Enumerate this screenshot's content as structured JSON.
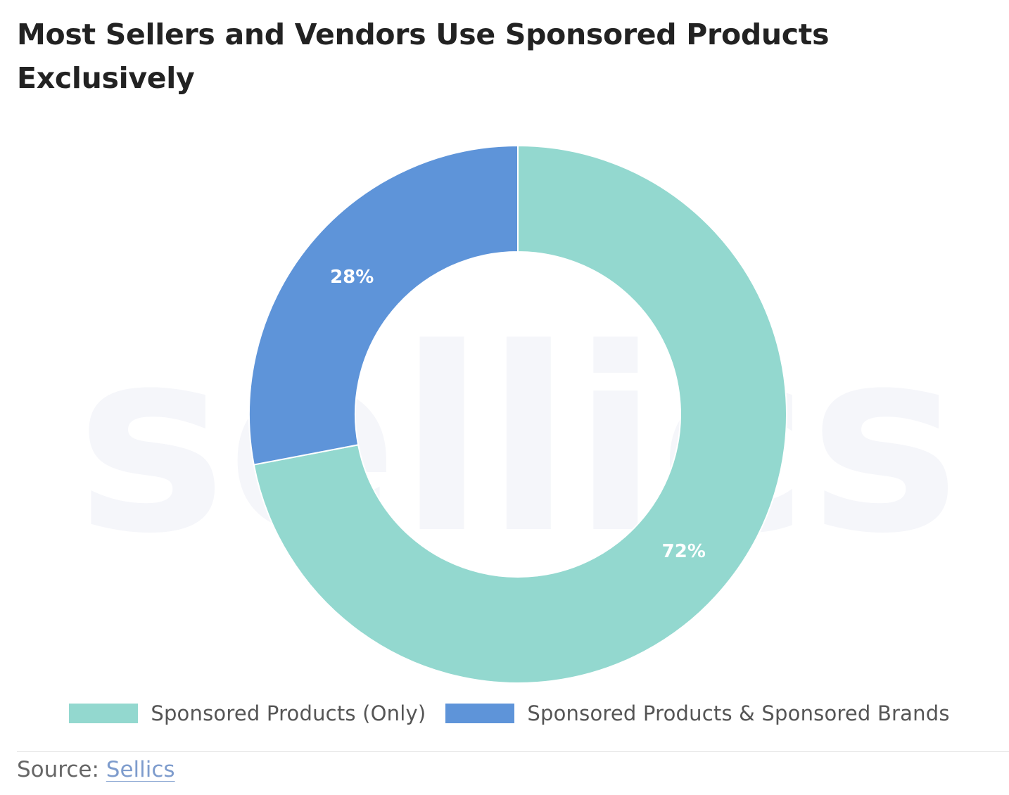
{
  "chart_data": {
    "type": "pie",
    "variant": "donut",
    "title": "Most Sellers and Vendors Use Sponsored Products Exclusively",
    "categories": [
      "Sponsored Products (Only)",
      "Sponsored Products & Sponsored Brands"
    ],
    "values": [
      72,
      28
    ],
    "unit": "%",
    "data_labels": [
      "72%",
      "28%"
    ],
    "colors": [
      "#93d8cf",
      "#5e94d9"
    ],
    "legend_position": "bottom-center",
    "watermark": "sellics"
  },
  "source": {
    "prefix": "Source:",
    "link_text": "Sellics",
    "link_color": "#7e9ccd"
  }
}
